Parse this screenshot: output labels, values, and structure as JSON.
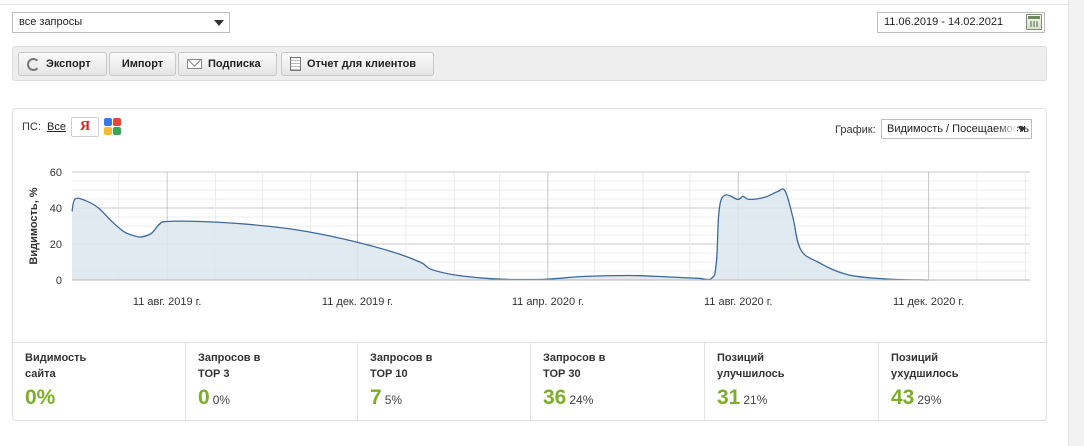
{
  "filters": {
    "query_select": "все запросы",
    "date_range": "11.06.2019 - 14.02.2021"
  },
  "toolbar": {
    "export": "Экспорт",
    "import": "Импорт",
    "subscribe": "Подписка",
    "client_report": "Отчет для клиентов"
  },
  "chart_controls": {
    "search_engines_label": "ПС:",
    "all_link": "Все",
    "yandex_letter": "Я",
    "graph_label": "График:",
    "graph_select": "Видимость / Посещаемость"
  },
  "colors": {
    "accent_green": "#7cae27",
    "line": "#3d6a99",
    "area": "#dde6ef"
  },
  "chart_data": {
    "type": "area",
    "ylabel": "Видимость, %",
    "ylim": [
      0,
      60
    ],
    "yticks": [
      "0",
      "20",
      "40",
      "60"
    ],
    "x_start": "2019-06-11",
    "x_end": "2021-02-14",
    "xticks": [
      {
        "date": "2019-08-11",
        "label": "11 авг. 2019 г."
      },
      {
        "date": "2019-12-11",
        "label": "11 дек. 2019 г."
      },
      {
        "date": "2020-04-11",
        "label": "11 апр. 2020 г."
      },
      {
        "date": "2020-08-11",
        "label": "11 авг. 2020 г."
      },
      {
        "date": "2020-12-11",
        "label": "11 дек. 2020 г."
      }
    ],
    "points": [
      [
        "2019-06-11",
        38
      ],
      [
        "2019-06-13",
        45
      ],
      [
        "2019-06-20",
        44
      ],
      [
        "2019-06-28",
        40
      ],
      [
        "2019-07-06",
        33
      ],
      [
        "2019-07-14",
        27
      ],
      [
        "2019-07-21",
        24.5
      ],
      [
        "2019-07-26",
        24
      ],
      [
        "2019-08-01",
        26
      ],
      [
        "2019-08-06",
        31
      ],
      [
        "2019-08-11",
        32.5
      ],
      [
        "2019-09-01",
        32.5
      ],
      [
        "2019-10-01",
        31
      ],
      [
        "2019-11-01",
        28
      ],
      [
        "2019-12-01",
        23
      ],
      [
        "2020-01-01",
        16
      ],
      [
        "2020-01-20",
        10
      ],
      [
        "2020-01-27",
        6
      ],
      [
        "2020-02-10",
        3
      ],
      [
        "2020-03-01",
        1
      ],
      [
        "2020-03-20",
        0.3
      ],
      [
        "2020-04-11",
        0.5
      ],
      [
        "2020-05-05",
        2
      ],
      [
        "2020-06-01",
        2.5
      ],
      [
        "2020-06-20",
        2
      ],
      [
        "2020-07-15",
        1
      ],
      [
        "2020-07-25",
        1
      ],
      [
        "2020-07-28",
        10
      ],
      [
        "2020-07-31",
        44.5
      ],
      [
        "2020-08-11",
        44.8
      ],
      [
        "2020-08-14",
        46.5
      ],
      [
        "2020-08-18",
        44.8
      ],
      [
        "2020-08-28",
        46
      ],
      [
        "2020-09-05",
        49
      ],
      [
        "2020-09-10",
        49.5
      ],
      [
        "2020-09-15",
        35
      ],
      [
        "2020-09-20",
        17
      ],
      [
        "2020-10-01",
        10
      ],
      [
        "2020-10-20",
        3
      ],
      [
        "2020-11-15",
        0.5
      ],
      [
        "2020-12-11",
        0
      ]
    ]
  },
  "stats": [
    {
      "title_line1": "Видимость",
      "title_line2": "сайта",
      "value": "0%",
      "percent": ""
    },
    {
      "title_line1": "Запросов в",
      "title_line2": "ТОР 3",
      "value": "0",
      "percent": "0%"
    },
    {
      "title_line1": "Запросов в",
      "title_line2": "ТОР 10",
      "value": "7",
      "percent": "5%"
    },
    {
      "title_line1": "Запросов в",
      "title_line2": "ТОР 30",
      "value": "36",
      "percent": "24%"
    },
    {
      "title_line1": "Позиций",
      "title_line2": "улучшилось",
      "value": "31",
      "percent": "21%"
    },
    {
      "title_line1": "Позиций",
      "title_line2": "ухудшилось",
      "value": "43",
      "percent": "29%"
    }
  ]
}
